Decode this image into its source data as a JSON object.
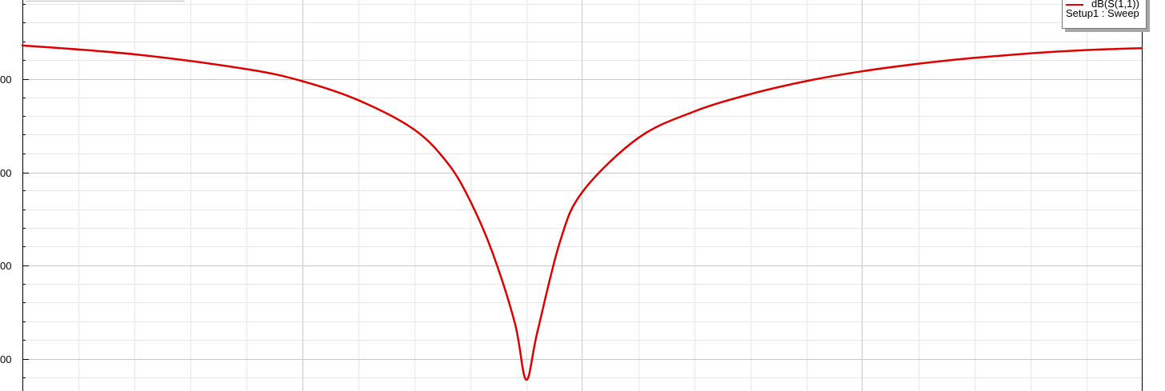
{
  "chart_data": {
    "type": "line",
    "title": "",
    "xlabel": "",
    "ylabel": "",
    "y_tick_labels": [
      "00",
      "00",
      "00",
      "00"
    ],
    "grid": true,
    "legend": {
      "placement": "top-right",
      "entries": [
        "dB(S(1,1))",
        "Setup1 : Sweep"
      ]
    },
    "colors": {
      "series": "#e00000",
      "major_grid": "#c8c8c8",
      "minor_grid": "#e6e6e6"
    },
    "series": [
      {
        "name": "dB(S(1,1))",
        "x": [
          0,
          0.1,
          0.2,
          0.25,
          0.3,
          0.35,
          0.38,
          0.4,
          0.42,
          0.44,
          0.45,
          0.46,
          0.48,
          0.5,
          0.55,
          0.6,
          0.65,
          0.7,
          0.75,
          0.8,
          0.85,
          0.9,
          0.95,
          1.0
        ],
        "values": [
          -0.28,
          -0.55,
          -1.0,
          -1.37,
          -1.95,
          -2.85,
          -3.88,
          -5.03,
          -6.62,
          -8.78,
          -10.5,
          -9.05,
          -6.31,
          -4.77,
          -3.11,
          -2.3,
          -1.77,
          -1.37,
          -1.07,
          -0.84,
          -0.66,
          -0.52,
          -0.42,
          -0.36
        ]
      }
    ]
  },
  "legend_text": {
    "line1": "dB(S(1,1))",
    "line2": "Setup1 : Sweep"
  }
}
